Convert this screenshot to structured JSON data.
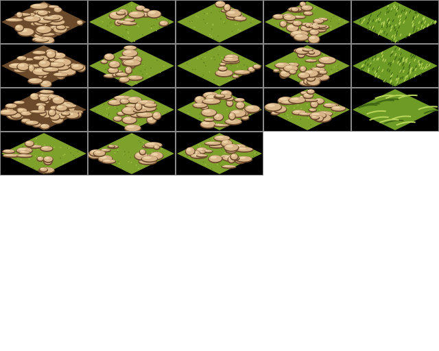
{
  "sheet": {
    "name": "isometric-terrain-tileset",
    "columns": 5,
    "background": "#000000",
    "grid_line_color": "#8a8a8a"
  },
  "palette": {
    "dirt": "#d9b68a",
    "dirt_light": "#ecd1a6",
    "dirt_crack": "#6b4a2b",
    "grass": "#7ea12c",
    "grass_dark": "#5e7f1c",
    "grass_light": "#a6c54a",
    "tall_grass": "#6e9a26",
    "tall_grass_dark": "#3f6614",
    "tall_grass_light": "#b9d65a"
  },
  "tiles": [
    {
      "name": "dirt-full",
      "type": "dirt"
    },
    {
      "name": "grass-dirt-top",
      "type": "mixed",
      "dirt": "top"
    },
    {
      "name": "grass-dirt-top-small",
      "type": "mixed",
      "dirt": "top-right"
    },
    {
      "name": "dirt-grass-right",
      "type": "mixed",
      "dirt": "left"
    },
    {
      "name": "tall-grass-a",
      "type": "tall-grass"
    },
    {
      "name": "dirt-full-b",
      "type": "dirt"
    },
    {
      "name": "grass-dirt-left",
      "type": "mixed",
      "dirt": "left-half"
    },
    {
      "name": "grass-dirt-right",
      "type": "mixed",
      "dirt": "right"
    },
    {
      "name": "dirt-grass-bottom-right",
      "type": "mixed",
      "dirt": "top-left"
    },
    {
      "name": "tall-grass-b",
      "type": "tall-grass"
    },
    {
      "name": "dirt-full-c",
      "type": "dirt"
    },
    {
      "name": "grass-dirt-center",
      "type": "mixed",
      "dirt": "center"
    },
    {
      "name": "grass-dirt-most",
      "type": "mixed",
      "dirt": "most"
    },
    {
      "name": "dirt-grass-bottom",
      "type": "mixed",
      "dirt": "top-big"
    },
    {
      "name": "tall-grass-striped",
      "type": "striped-grass"
    },
    {
      "name": "dirt-grass-top-right",
      "type": "mixed",
      "dirt": "bottom-left"
    },
    {
      "name": "grass-dirt-sides",
      "type": "mixed",
      "dirt": "sides"
    },
    {
      "name": "dirt-grass-bottom-b",
      "type": "mixed",
      "dirt": "top-most"
    }
  ]
}
